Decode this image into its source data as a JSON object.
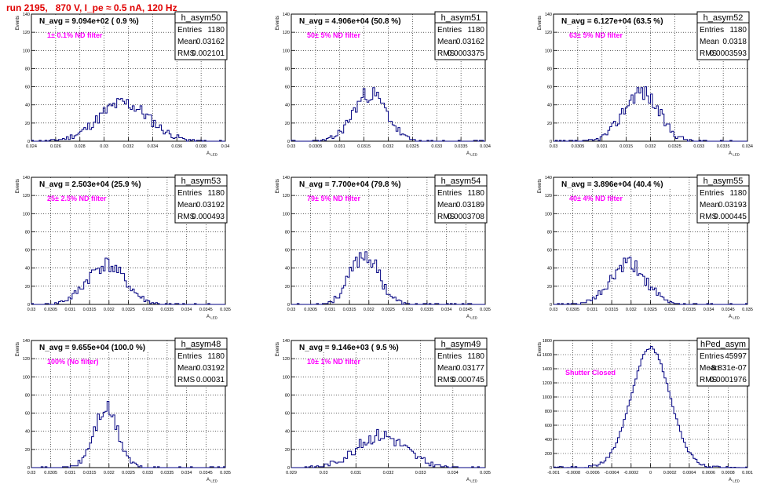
{
  "run_title": "run 2195,   870 V, I_pe ≈ 0.5 nA, 120 Hz",
  "colors": {
    "hist": "#000080",
    "nd_label": "#ff00ff",
    "run_title": "#e00000",
    "grid": "#000000"
  },
  "axis": {
    "ylabel": "Events",
    "xlabel_base": "A",
    "xlabel_sub": "LED"
  },
  "chart_data": [
    {
      "type": "histogram",
      "name": "h_asym50",
      "navg": "N_avg = 9.094e+02 ( 0.9 %)",
      "label": "1± 0.1% ND filter",
      "stats": {
        "entries": "1180",
        "mean": "0.03162",
        "rms": "0.002101"
      },
      "xlim": [
        0.024,
        0.04
      ],
      "ylim": [
        0,
        140
      ],
      "xticks": [
        "0.024",
        "0.026",
        "0.028",
        "0.03",
        "0.032",
        "0.034",
        "0.036",
        "0.038",
        "0.04"
      ],
      "yticks": [
        "0",
        "20",
        "40",
        "60",
        "80",
        "100",
        "120",
        "140"
      ],
      "center": 0.0316,
      "sigma": 0.0021,
      "peak": 42,
      "seed": 11
    },
    {
      "type": "histogram",
      "name": "h_asym51",
      "navg": "N_avg = 4.906e+04 (50.8 %)",
      "label": "50± 5% ND filter",
      "stats": {
        "entries": "1180",
        "mean": "0.03162",
        "rms": "0.0003375"
      },
      "xlim": [
        0.03,
        0.034
      ],
      "ylim": [
        0,
        140
      ],
      "xticks": [
        "0.03",
        "0.0305",
        "0.031",
        "0.0315",
        "0.032",
        "0.0325",
        "0.033",
        "0.0335",
        "0.034"
      ],
      "yticks": [
        "0",
        "20",
        "40",
        "60",
        "80",
        "100",
        "120",
        "140"
      ],
      "center": 0.03162,
      "sigma": 0.00034,
      "peak": 53,
      "seed": 23
    },
    {
      "type": "histogram",
      "name": "h_asym52",
      "navg": "N_avg = 6.127e+04 (63.5 %)",
      "label": "63± 5% ND filter",
      "stats": {
        "entries": "1180",
        "mean": "0.0318",
        "rms": "0.0003593"
      },
      "xlim": [
        0.03,
        0.034
      ],
      "ylim": [
        0,
        140
      ],
      "xticks": [
        "0.03",
        "0.0305",
        "0.031",
        "0.0315",
        "0.032",
        "0.0325",
        "0.033",
        "0.0335",
        "0.034"
      ],
      "yticks": [
        "0",
        "20",
        "40",
        "60",
        "80",
        "100",
        "120",
        "140"
      ],
      "center": 0.0318,
      "sigma": 0.00036,
      "peak": 55,
      "seed": 37
    },
    {
      "type": "histogram",
      "name": "h_asym53",
      "navg": "N_avg = 2.503e+04 (25.9 %)",
      "label": "25± 2.5% ND filter",
      "stats": {
        "entries": "1180",
        "mean": "0.03192",
        "rms": "0.000493"
      },
      "xlim": [
        0.03,
        0.035
      ],
      "ylim": [
        0,
        140
      ],
      "xticks": [
        "0.03",
        "0.0305",
        "0.031",
        "0.0315",
        "0.032",
        "0.0325",
        "0.033",
        "0.0335",
        "0.034",
        "0.0345",
        "0.035"
      ],
      "yticks": [
        "0",
        "20",
        "40",
        "60",
        "80",
        "100",
        "120",
        "140"
      ],
      "center": 0.03192,
      "sigma": 0.00049,
      "peak": 44,
      "seed": 41
    },
    {
      "type": "histogram",
      "name": "h_asym54",
      "navg": "N_avg = 7.700e+04 (79.8 %)",
      "label": "79± 5% ND filter",
      "stats": {
        "entries": "1180",
        "mean": "0.03189",
        "rms": "0.0003708"
      },
      "xlim": [
        0.03,
        0.035
      ],
      "ylim": [
        0,
        140
      ],
      "xticks": [
        "0.03",
        "0.0305",
        "0.031",
        "0.0315",
        "0.032",
        "0.0325",
        "0.033",
        "0.0335",
        "0.034",
        "0.0345",
        "0.035"
      ],
      "yticks": [
        "0",
        "20",
        "40",
        "60",
        "80",
        "100",
        "120",
        "140"
      ],
      "center": 0.03189,
      "sigma": 0.00037,
      "peak": 55,
      "seed": 53
    },
    {
      "type": "histogram",
      "name": "h_asym55",
      "navg": "N_avg = 3.896e+04 (40.4 %)",
      "label": "40± 4% ND filter",
      "stats": {
        "entries": "1180",
        "mean": "0.03193",
        "rms": "0.000445"
      },
      "xlim": [
        0.03,
        0.035
      ],
      "ylim": [
        0,
        140
      ],
      "xticks": [
        "0.03",
        "0.0305",
        "0.031",
        "0.0315",
        "0.032",
        "0.0325",
        "0.033",
        "0.0335",
        "0.034",
        "0.0345",
        "0.035"
      ],
      "yticks": [
        "0",
        "20",
        "40",
        "60",
        "80",
        "100",
        "120",
        "140"
      ],
      "center": 0.03193,
      "sigma": 0.00045,
      "peak": 44,
      "seed": 61
    },
    {
      "type": "histogram",
      "name": "h_asym48",
      "navg": "N_avg = 9.655e+04 (100.0 %)",
      "label": "100% (No filter)",
      "stats": {
        "entries": "1180",
        "mean": "0.03192",
        "rms": "0.00031"
      },
      "xlim": [
        0.03,
        0.035
      ],
      "ylim": [
        0,
        140
      ],
      "xticks": [
        "0.03",
        "0.0305",
        "0.031",
        "0.0315",
        "0.032",
        "0.0325",
        "0.033",
        "0.0335",
        "0.034",
        "0.0345",
        "0.035"
      ],
      "yticks": [
        "0",
        "20",
        "40",
        "60",
        "80",
        "100",
        "120",
        "140"
      ],
      "center": 0.03192,
      "sigma": 0.00031,
      "peak": 64,
      "seed": 71
    },
    {
      "type": "histogram",
      "name": "h_asym49",
      "navg": "N_avg = 9.146e+03 ( 9.5 %)",
      "label": "10± 1% ND filter",
      "stats": {
        "entries": "1180",
        "mean": "0.03177",
        "rms": "0.000745"
      },
      "xlim": [
        0.029,
        0.035
      ],
      "ylim": [
        0,
        140
      ],
      "xticks": [
        "0.029",
        "0.03",
        "0.031",
        "0.032",
        "0.033",
        "0.034",
        "0.035"
      ],
      "yticks": [
        "0",
        "20",
        "40",
        "60",
        "80",
        "100",
        "120",
        "140"
      ],
      "center": 0.03177,
      "sigma": 0.00075,
      "peak": 36,
      "seed": 83
    },
    {
      "type": "histogram",
      "name": "hPed_asym",
      "navg": "",
      "label": "Shutter Closed",
      "stats": {
        "entries": "45997",
        "mean": "-8.831e-07",
        "rms": "0.0001976"
      },
      "xlim": [
        -0.001,
        0.001
      ],
      "ylim": [
        0,
        1800
      ],
      "xticks": [
        "-0.001",
        "-0.0008",
        "-0.0006",
        "-0.0004",
        "-0.0002",
        "0",
        "0.0002",
        "0.0004",
        "0.0006",
        "0.0008",
        "0.001"
      ],
      "yticks": [
        "0",
        "200",
        "400",
        "600",
        "800",
        "1000",
        "1200",
        "1400",
        "1600",
        "1800"
      ],
      "center": 0.0,
      "sigma": 0.000198,
      "peak": 1700,
      "seed": 97
    }
  ]
}
